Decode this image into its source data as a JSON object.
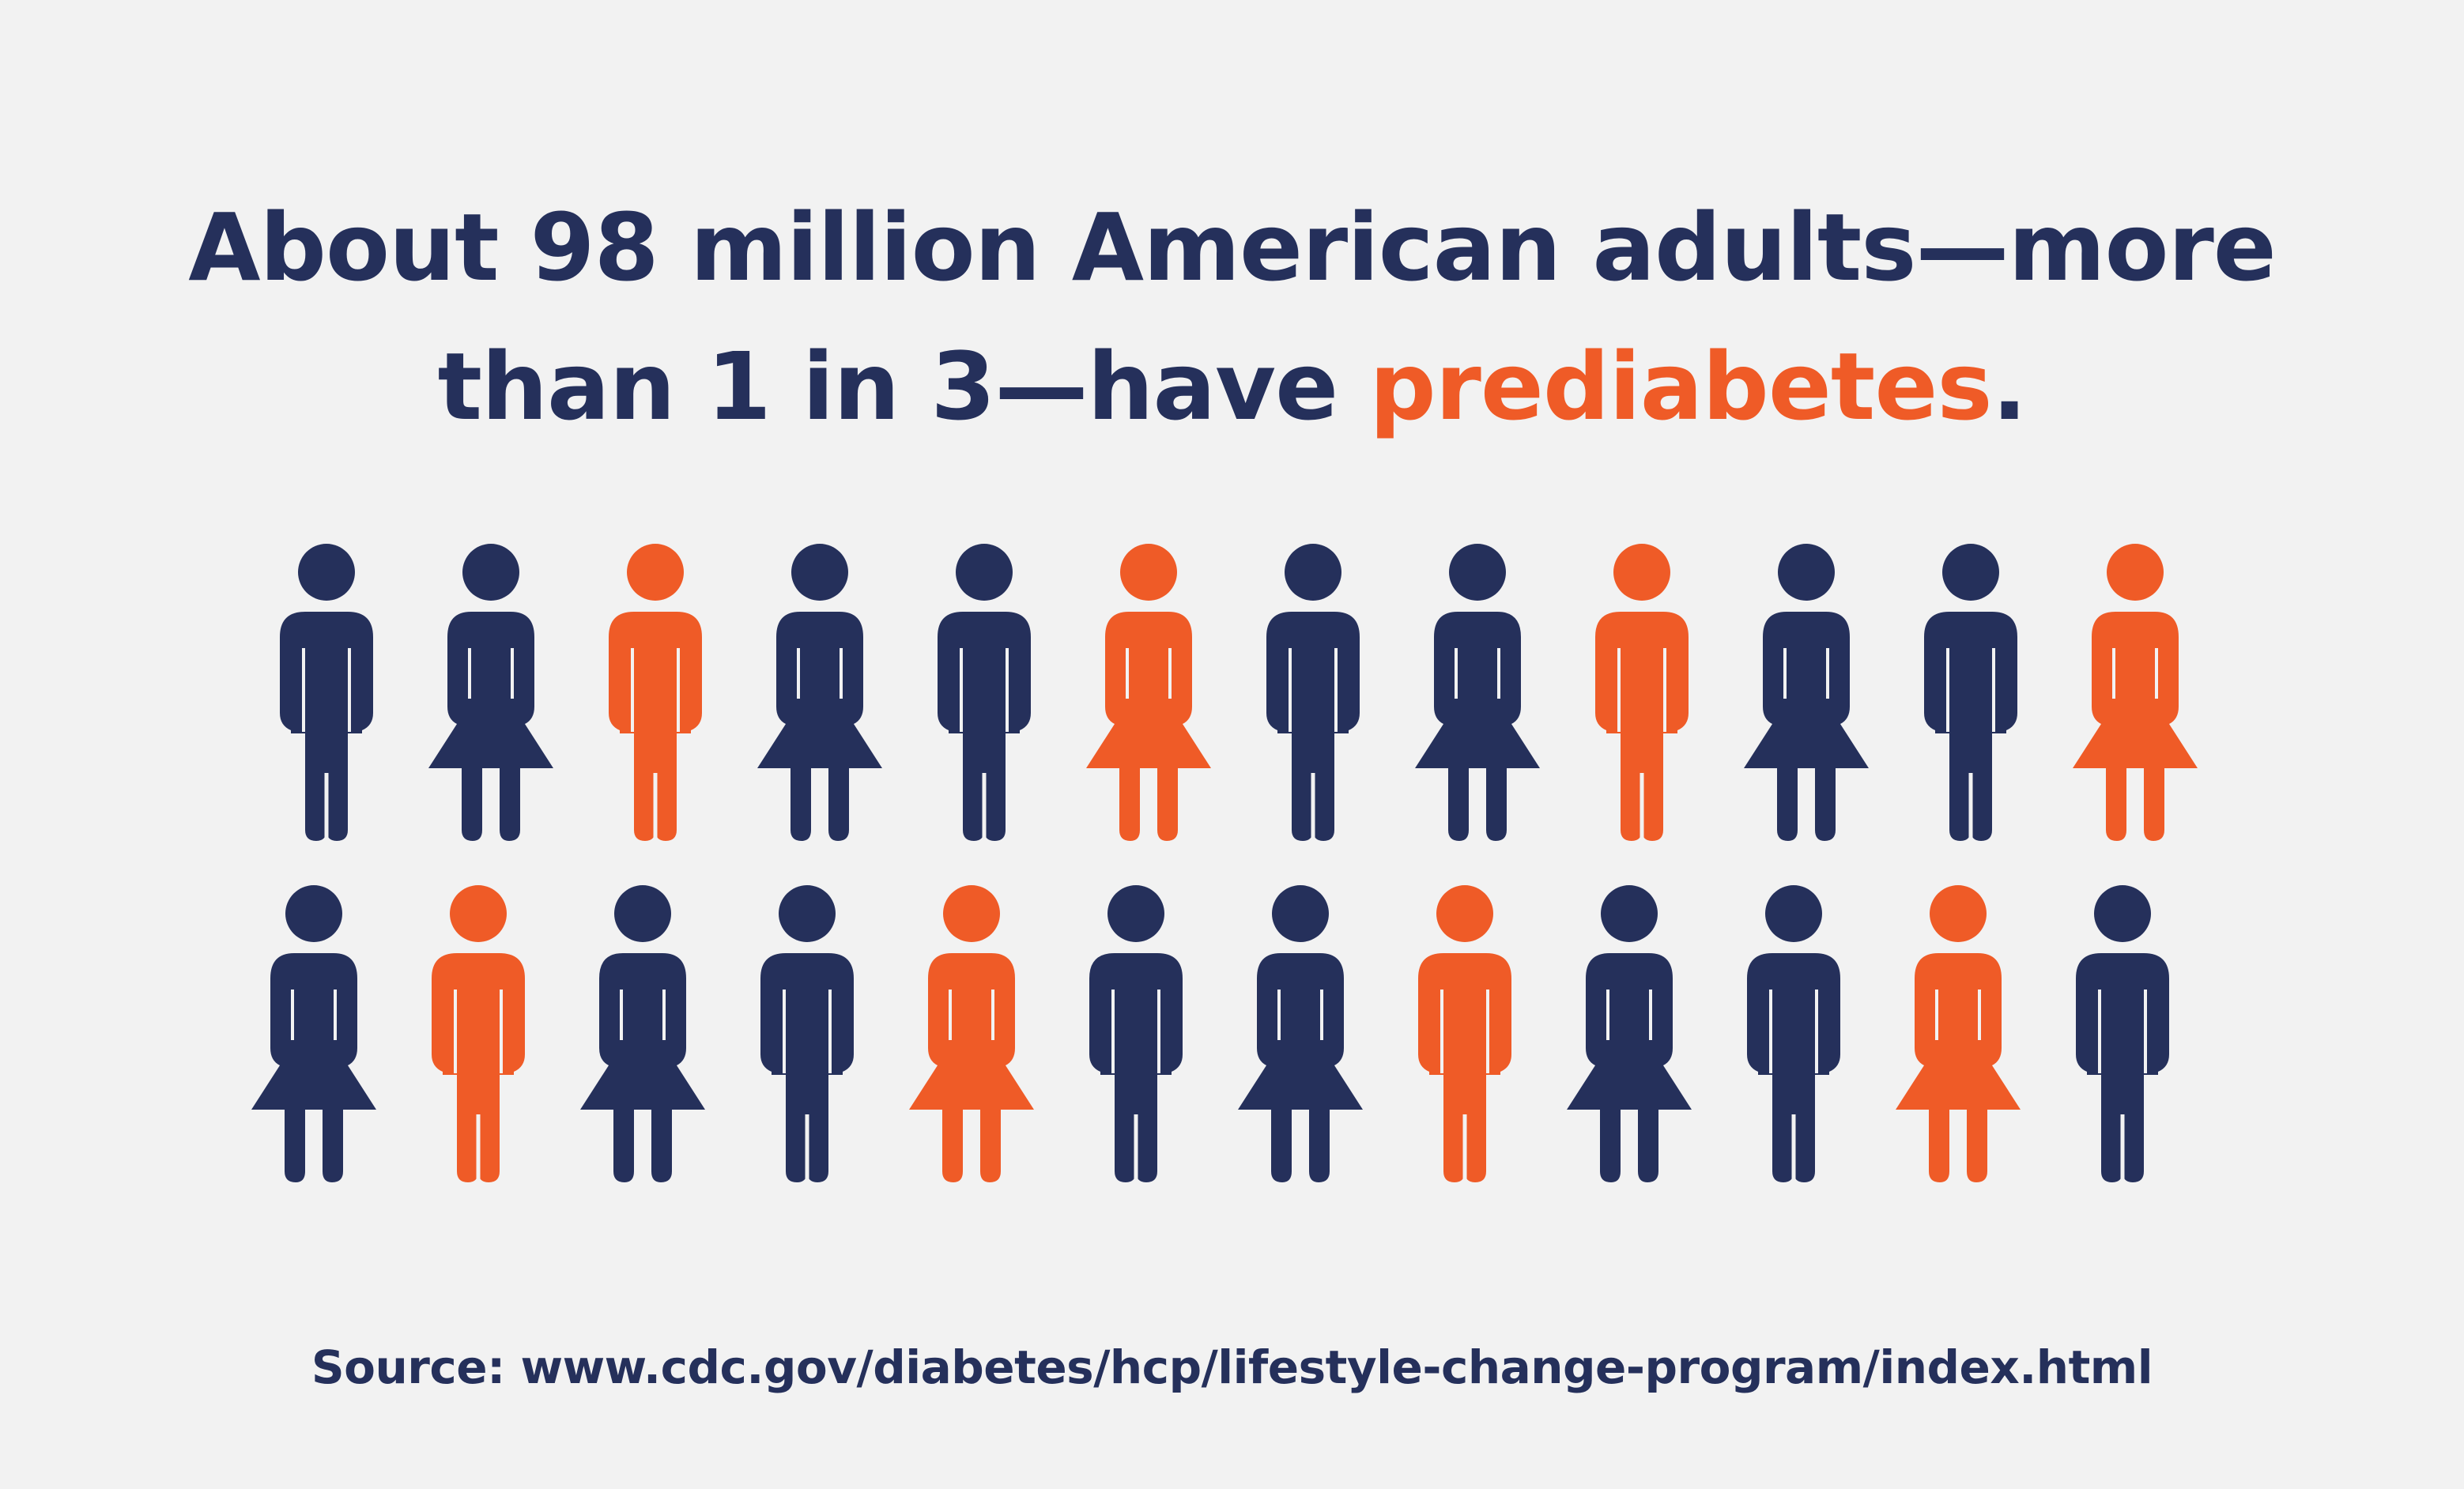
{
  "colors": {
    "background": "#f2f2f2",
    "navy": "#25305b",
    "orange": "#ef5b27"
  },
  "headline": {
    "line1": "About 98 million American adults—more",
    "line2_prefix": "than 1 in 3—have ",
    "line2_highlight": "prediabetes",
    "line2_suffix": "."
  },
  "figures": {
    "total": 24,
    "highlighted": 8,
    "rows": [
      [
        {
          "icon": "man-icon",
          "highlighted": false
        },
        {
          "icon": "woman-icon",
          "highlighted": false
        },
        {
          "icon": "man-icon",
          "highlighted": true
        },
        {
          "icon": "woman-icon",
          "highlighted": false
        },
        {
          "icon": "man-icon",
          "highlighted": false
        },
        {
          "icon": "woman-icon",
          "highlighted": true
        },
        {
          "icon": "man-icon",
          "highlighted": false
        },
        {
          "icon": "woman-icon",
          "highlighted": false
        },
        {
          "icon": "man-icon",
          "highlighted": true
        },
        {
          "icon": "woman-icon",
          "highlighted": false
        },
        {
          "icon": "man-icon",
          "highlighted": false
        },
        {
          "icon": "woman-icon",
          "highlighted": true
        }
      ],
      [
        {
          "icon": "woman-icon",
          "highlighted": false
        },
        {
          "icon": "man-icon",
          "highlighted": true
        },
        {
          "icon": "woman-icon",
          "highlighted": false
        },
        {
          "icon": "man-icon",
          "highlighted": false
        },
        {
          "icon": "woman-icon",
          "highlighted": true
        },
        {
          "icon": "man-icon",
          "highlighted": false
        },
        {
          "icon": "woman-icon",
          "highlighted": false
        },
        {
          "icon": "man-icon",
          "highlighted": true
        },
        {
          "icon": "woman-icon",
          "highlighted": false
        },
        {
          "icon": "man-icon",
          "highlighted": false
        },
        {
          "icon": "woman-icon",
          "highlighted": true
        },
        {
          "icon": "man-icon",
          "highlighted": false
        }
      ]
    ]
  },
  "source": {
    "text": "Source: www.cdc.gov/diabetes/hcp/lifestyle-change-program/index.html"
  }
}
